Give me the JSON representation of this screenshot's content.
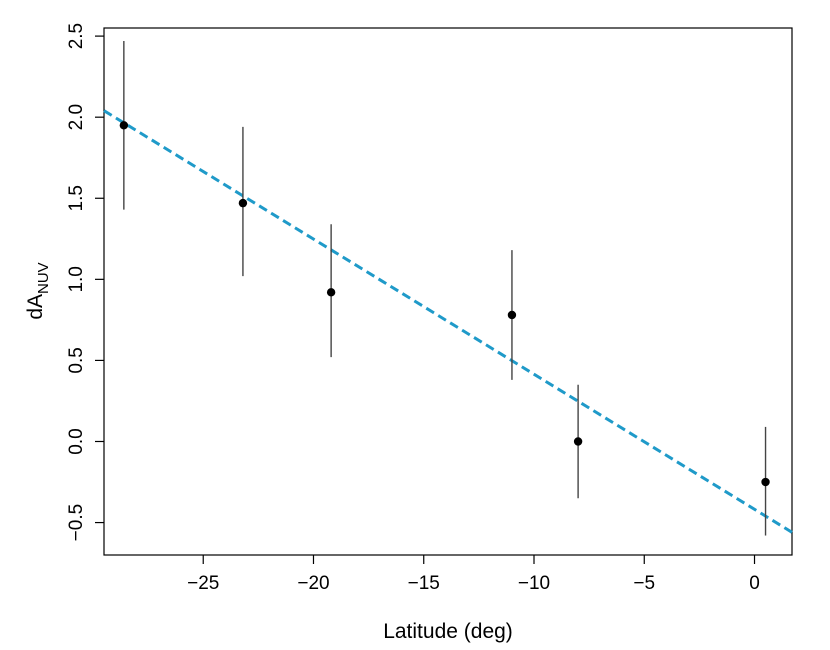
{
  "chart_data": {
    "type": "scatter",
    "xlabel": "Latitude (deg)",
    "ylabel": {
      "main": "dA",
      "subscript": "NUV"
    },
    "xlim": [
      -29.5,
      1.7
    ],
    "ylim": [
      -0.7,
      2.55
    ],
    "x_ticks": [
      -25,
      -20,
      -15,
      -10,
      -5,
      0
    ],
    "x_tick_labels": [
      "−25",
      "−20",
      "−15",
      "−10",
      "−5",
      "0"
    ],
    "y_ticks": [
      -0.5,
      0.0,
      0.5,
      1.0,
      1.5,
      2.0,
      2.5
    ],
    "y_tick_labels": [
      "−0.5",
      "0.0",
      "0.5",
      "1.0",
      "1.5",
      "2.0",
      "2.5"
    ],
    "points": [
      {
        "x": -28.6,
        "y": 1.95,
        "ylow": 1.43,
        "yhigh": 2.47
      },
      {
        "x": -23.2,
        "y": 1.47,
        "ylow": 1.02,
        "yhigh": 1.94
      },
      {
        "x": -19.2,
        "y": 0.92,
        "ylow": 0.52,
        "yhigh": 1.34
      },
      {
        "x": -11.0,
        "y": 0.78,
        "ylow": 0.38,
        "yhigh": 1.18
      },
      {
        "x": -8.0,
        "y": 0.0,
        "ylow": -0.35,
        "yhigh": 0.35
      },
      {
        "x": 0.5,
        "y": -0.25,
        "ylow": -0.58,
        "yhigh": 0.09
      }
    ],
    "fit_line": {
      "x": [
        -29.5,
        1.7
      ],
      "y": [
        2.04,
        -0.56
      ],
      "style": "dashed",
      "color": "#1f9ac9"
    },
    "grid": false,
    "legend": "none"
  }
}
